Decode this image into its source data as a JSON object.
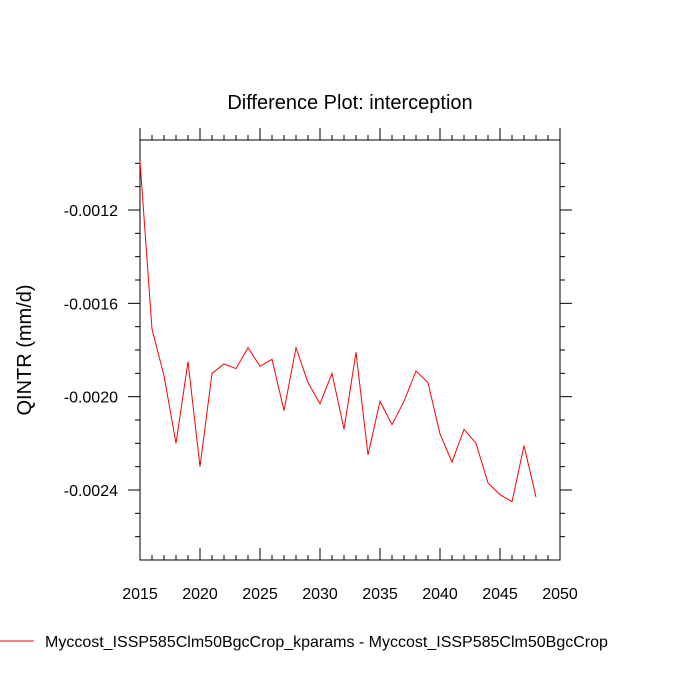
{
  "chart_data": {
    "type": "line",
    "title": "Difference Plot: interception",
    "xlabel": "",
    "ylabel": "QINTR  (mm/d)",
    "xlim": [
      2015,
      2050
    ],
    "ylim": [
      -0.0027,
      -0.0009
    ],
    "xticks": [
      2015,
      2020,
      2025,
      2030,
      2035,
      2040,
      2045,
      2050
    ],
    "xtick_labels": [
      "2015",
      "2020",
      "2025",
      "2030",
      "2035",
      "2040",
      "2045",
      "2050"
    ],
    "yticks": [
      -0.0012,
      -0.0016,
      -0.002,
      -0.0024
    ],
    "ytick_labels": [
      "-0.0012",
      "-0.0016",
      "-0.0020",
      "-0.0024"
    ],
    "grid": false,
    "legend_position": "bottom",
    "series": [
      {
        "name": "Myccost_ISSP585Clm50BgcCrop_kparams - Myccost_ISSP585Clm50BgcCrop",
        "color": "#ff0000",
        "x": [
          2015,
          2016,
          2017,
          2018,
          2019,
          2020,
          2021,
          2022,
          2023,
          2024,
          2025,
          2026,
          2027,
          2028,
          2029,
          2030,
          2031,
          2032,
          2033,
          2034,
          2035,
          2036,
          2037,
          2038,
          2039,
          2040,
          2041,
          2042,
          2043,
          2044,
          2045,
          2046,
          2047,
          2048
        ],
        "values": [
          -0.00099,
          -0.00171,
          -0.00191,
          -0.0022,
          -0.00185,
          -0.0023,
          -0.0019,
          -0.00186,
          -0.00188,
          -0.00179,
          -0.00187,
          -0.00184,
          -0.00206,
          -0.00179,
          -0.00194,
          -0.00203,
          -0.0019,
          -0.00214,
          -0.00181,
          -0.00225,
          -0.00202,
          -0.00212,
          -0.00202,
          -0.00189,
          -0.00194,
          -0.00216,
          -0.00228,
          -0.00214,
          -0.0022,
          -0.00237,
          -0.00242,
          -0.00245,
          -0.00221,
          -0.00243
        ]
      }
    ]
  }
}
